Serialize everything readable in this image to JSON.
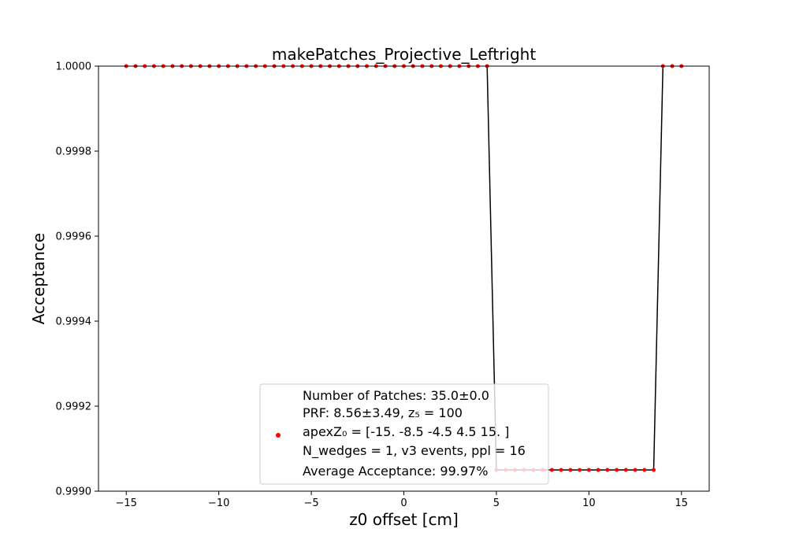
{
  "chart_data": {
    "type": "line",
    "title": "makePatches_Projective_Leftright",
    "xlabel": "z0 offset [cm]",
    "ylabel": "Acceptance",
    "xlim": [
      -16.5,
      16.5
    ],
    "ylim": [
      0.999,
      1.0
    ],
    "xticks": [
      -15,
      -10,
      -5,
      0,
      5,
      10,
      15
    ],
    "xtick_labels": [
      "−15",
      "−10",
      "−5",
      "0",
      "5",
      "10",
      "15"
    ],
    "yticks": [
      0.999,
      0.9992,
      0.9994,
      0.9996,
      0.9998,
      1.0
    ],
    "ytick_labels": [
      "0.9990",
      "0.9992",
      "0.9994",
      "0.9996",
      "0.9998",
      "1.0000"
    ],
    "grid": false,
    "legend_position": "lower center",
    "line_color": "#000000",
    "marker_color": "#ff0000",
    "series": [
      {
        "style": "line",
        "x": [
          4.5,
          5.0,
          13.5,
          14.0
        ],
        "y": [
          1.0,
          0.99905,
          0.99905,
          1.0
        ]
      },
      {
        "style": "scatter",
        "x": [
          -15.0,
          -14.5,
          -14.0,
          -13.5,
          -13.0,
          -12.5,
          -12.0,
          -11.5,
          -11.0,
          -10.5,
          -10.0,
          -9.5,
          -9.0,
          -8.5,
          -8.0,
          -7.5,
          -7.0,
          -6.5,
          -6.0,
          -5.5,
          -5.0,
          -4.5,
          -4.0,
          -3.5,
          -3.0,
          -2.5,
          -2.0,
          -1.5,
          -1.0,
          -0.5,
          0.0,
          0.5,
          1.0,
          1.5,
          2.0,
          2.5,
          3.0,
          3.5,
          4.0,
          4.5,
          5.0,
          5.5,
          6.0,
          6.5,
          7.0,
          7.5,
          8.0,
          8.5,
          9.0,
          9.5,
          10.0,
          10.5,
          11.0,
          11.5,
          12.0,
          12.5,
          13.0,
          13.5,
          14.0,
          14.5,
          15.0
        ],
        "y": [
          1.0,
          1.0,
          1.0,
          1.0,
          1.0,
          1.0,
          1.0,
          1.0,
          1.0,
          1.0,
          1.0,
          1.0,
          1.0,
          1.0,
          1.0,
          1.0,
          1.0,
          1.0,
          1.0,
          1.0,
          1.0,
          1.0,
          1.0,
          1.0,
          1.0,
          1.0,
          1.0,
          1.0,
          1.0,
          1.0,
          1.0,
          1.0,
          1.0,
          1.0,
          1.0,
          1.0,
          1.0,
          1.0,
          1.0,
          1.0,
          0.99905,
          0.99905,
          0.99905,
          0.99905,
          0.99905,
          0.99905,
          0.99905,
          0.99905,
          0.99905,
          0.99905,
          0.99905,
          0.99905,
          0.99905,
          0.99905,
          0.99905,
          0.99905,
          0.99905,
          0.99905,
          1.0,
          1.0,
          1.0
        ]
      }
    ],
    "legend": {
      "lines": [
        "Number of Patches: 35.0±0.0",
        "PRF: 8.56±3.49, z₅ = 100",
        "apexZ₀ = [-15.   -8.5  -4.5   4.5  15. ]",
        "N_wedges = 1, v3 events, ppl = 16",
        "Average Acceptance: 99.97%"
      ]
    }
  }
}
